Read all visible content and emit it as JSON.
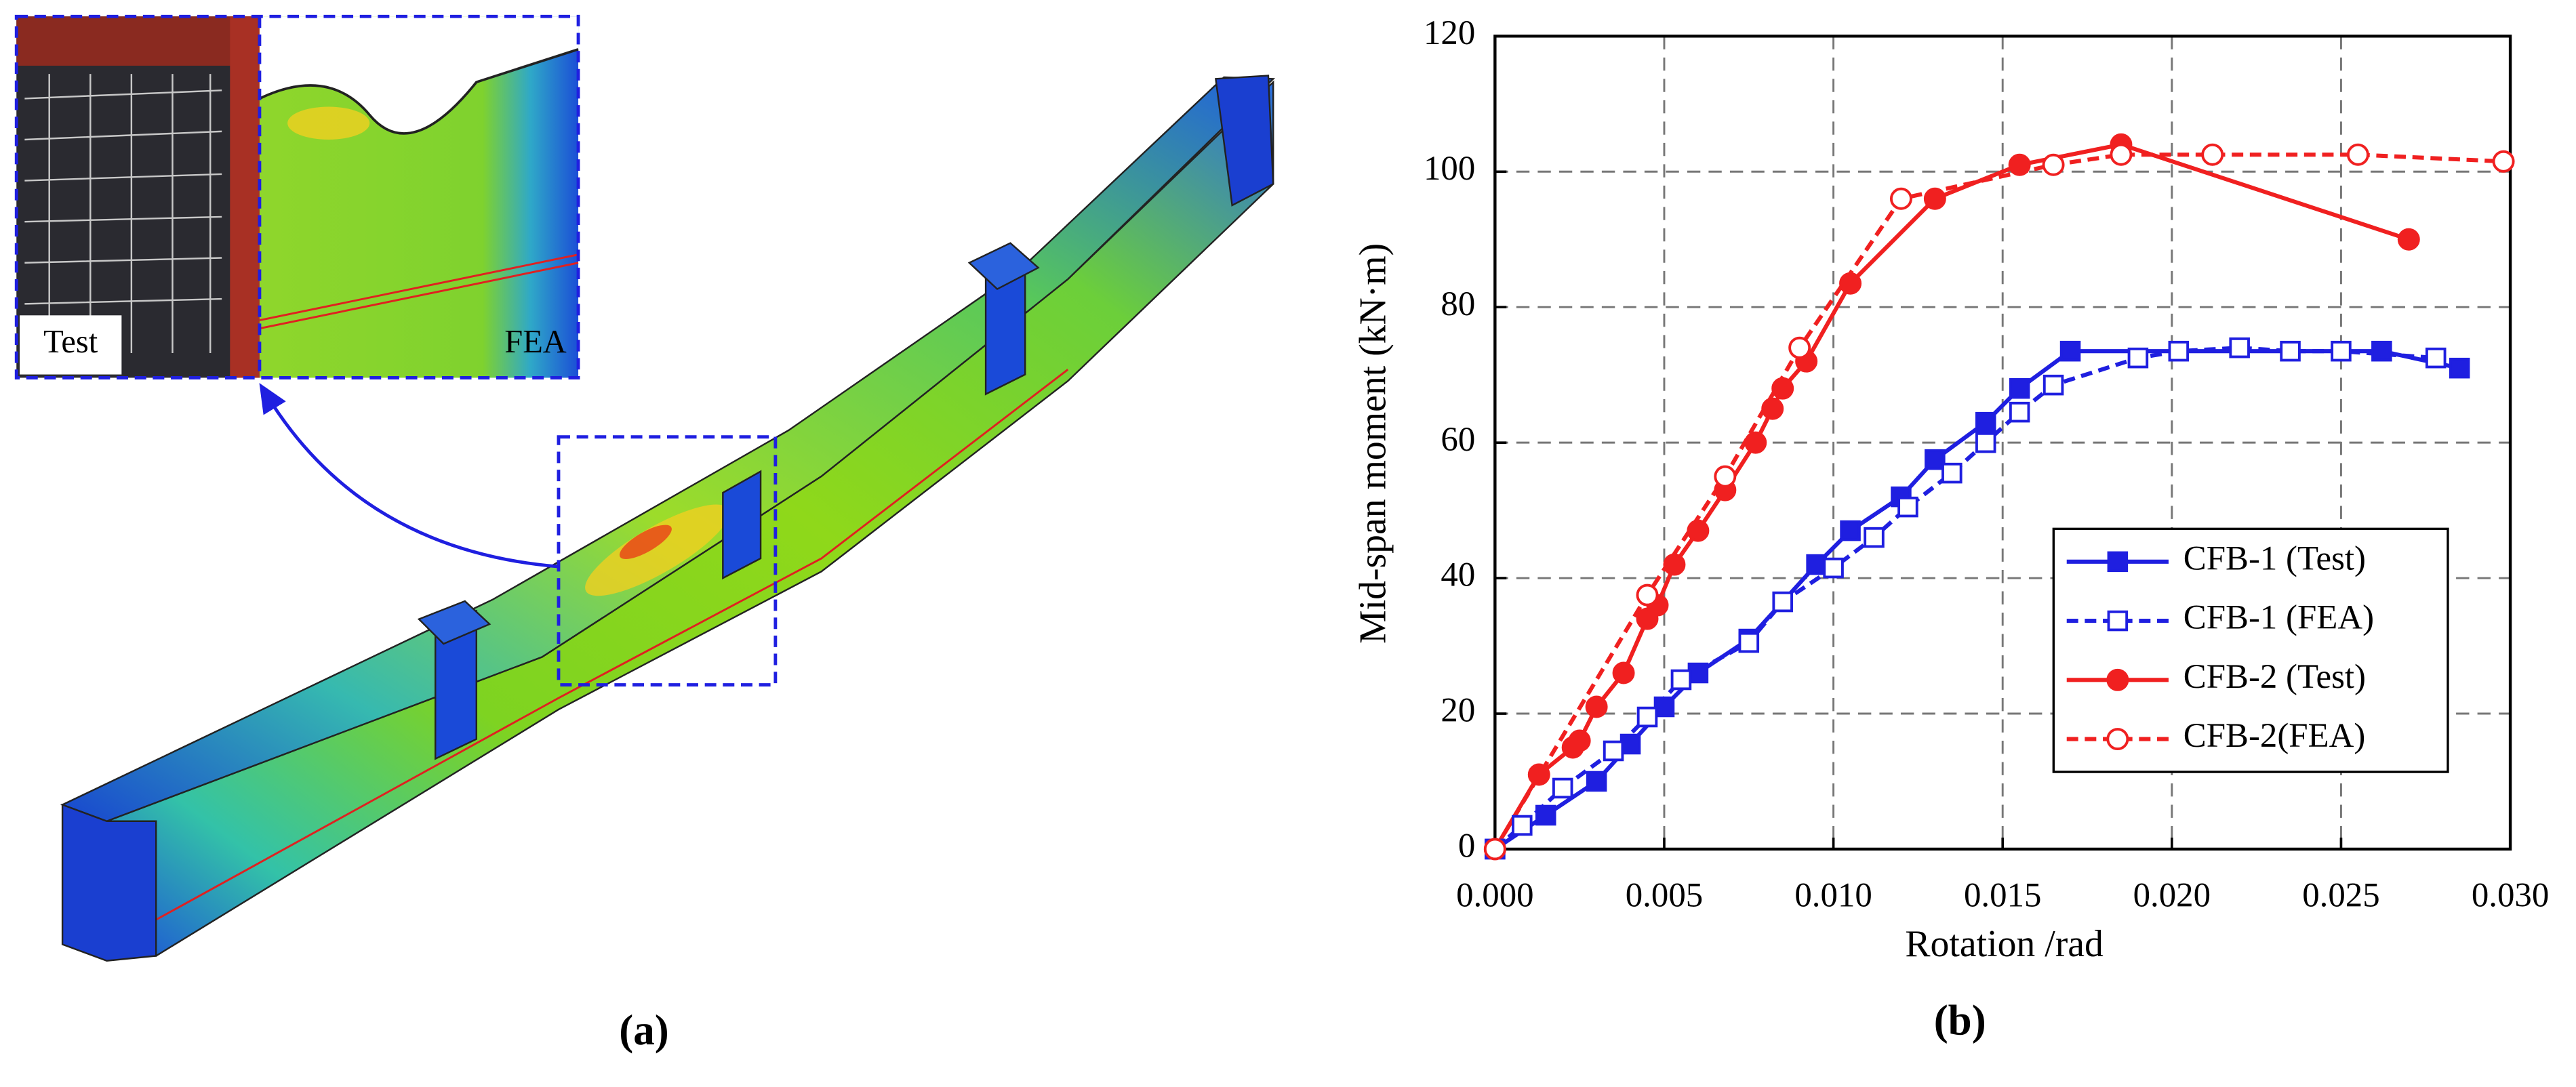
{
  "panels": {
    "a": {
      "label": "(a)",
      "inset_left": "Test",
      "inset_right": "FEA"
    },
    "b": {
      "label": "(b)"
    }
  },
  "chart_data": {
    "type": "line",
    "xlabel": "Rotation /rad",
    "ylabel": "Mid-span moment (kN·m)",
    "xlim": [
      0,
      0.03
    ],
    "ylim": [
      0,
      120
    ],
    "xticks": [
      {
        "value": 0,
        "label": "0.000"
      },
      {
        "value": 0.005,
        "label": "0.005"
      },
      {
        "value": 0.01,
        "label": "0.010"
      },
      {
        "value": 0.015,
        "label": "0.015"
      },
      {
        "value": 0.02,
        "label": "0.020"
      },
      {
        "value": 0.025,
        "label": "0.025"
      },
      {
        "value": 0.03,
        "label": "0.030"
      }
    ],
    "yticks": [
      0,
      20,
      40,
      60,
      80,
      100,
      120
    ],
    "grid": true,
    "legend": "lower right",
    "series": [
      {
        "name": "CFB-1 (Test)",
        "color": "#1f1fe0",
        "line_style": "solid",
        "marker": "square",
        "marker_fill": "filled",
        "x": [
          0,
          0.0015,
          0.003,
          0.004,
          0.005,
          0.006,
          0.0075,
          0.0095,
          0.0105,
          0.012,
          0.013,
          0.0145,
          0.0155,
          0.017,
          0.0262,
          0.0285
        ],
        "values": [
          0,
          5,
          10,
          15.5,
          21,
          26,
          31,
          42,
          47,
          52,
          57.5,
          63,
          68,
          73.5,
          73.5,
          71
        ]
      },
      {
        "name": "CFB-1 (FEA)",
        "color": "#1f1fe0",
        "line_style": "dashed",
        "marker": "square",
        "marker_fill": "open",
        "x": [
          0,
          0.0008,
          0.002,
          0.0035,
          0.0045,
          0.0055,
          0.0075,
          0.0085,
          0.01,
          0.0112,
          0.0122,
          0.0135,
          0.0145,
          0.0155,
          0.0165,
          0.019,
          0.0202,
          0.022,
          0.0235,
          0.025,
          0.0278
        ],
        "values": [
          0,
          3.5,
          9,
          14.5,
          19.5,
          25,
          30.5,
          36.5,
          41.5,
          46,
          50.5,
          55.5,
          60,
          64.5,
          68.5,
          72.5,
          73.5,
          74,
          73.5,
          73.5,
          72.5
        ]
      },
      {
        "name": "CFB-2 (Test)",
        "color": "#f02020",
        "line_style": "solid",
        "marker": "circle",
        "marker_fill": "filled",
        "x": [
          0,
          0.0013,
          0.0023,
          0.0025,
          0.003,
          0.0038,
          0.0045,
          0.0048,
          0.0053,
          0.006,
          0.0068,
          0.0077,
          0.0082,
          0.0085,
          0.0092,
          0.0105,
          0.013,
          0.0155,
          0.0185,
          0.027
        ],
        "values": [
          0,
          11,
          15,
          16,
          21,
          26,
          34,
          36,
          42,
          47,
          53,
          60,
          65,
          68,
          72,
          83.5,
          96,
          101,
          104,
          90
        ]
      },
      {
        "name": "CFB-2(FEA)",
        "color": "#f02020",
        "line_style": "dashed",
        "marker": "circle",
        "marker_fill": "open",
        "x": [
          0,
          0.0045,
          0.0068,
          0.009,
          0.012,
          0.0165,
          0.0185,
          0.0212,
          0.0255,
          0.0298
        ],
        "values": [
          0,
          37.5,
          55,
          74,
          96,
          101,
          102.5,
          102.5,
          102.5,
          101.5
        ]
      }
    ]
  }
}
